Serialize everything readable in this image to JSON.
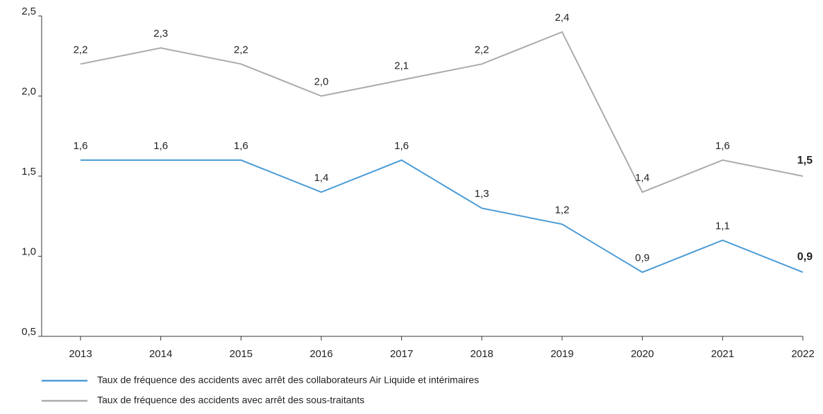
{
  "chart_data": {
    "type": "line",
    "categories": [
      "2013",
      "2014",
      "2015",
      "2016",
      "2017",
      "2018",
      "2019",
      "2020",
      "2021",
      "2022"
    ],
    "series": [
      {
        "name": "Taux de fréquence des accidents avec arrêt des collaborateurs Air Liquide et intérimaires",
        "color": "#4a9bd6",
        "values": [
          1.6,
          1.6,
          1.6,
          1.4,
          1.6,
          1.3,
          1.2,
          0.9,
          1.1,
          0.9
        ],
        "value_labels": [
          "1,6",
          "1,6",
          "1,6",
          "1,4",
          "1,6",
          "1,3",
          "1,2",
          "0,9",
          "1,1",
          "0,9"
        ]
      },
      {
        "name": "Taux de fréquence des accidents avec arrêt des sous-traitants",
        "color": "#aaaaaa",
        "values": [
          2.2,
          2.3,
          2.2,
          2.0,
          2.1,
          2.2,
          2.4,
          1.4,
          1.6,
          1.5
        ],
        "value_labels": [
          "2,2",
          "2,3",
          "2,2",
          "2,0",
          "2,1",
          "2,2",
          "2,4",
          "1,4",
          "1,6",
          "1,5"
        ]
      }
    ],
    "ylim": [
      0.5,
      2.5
    ],
    "yticks": [
      {
        "value": 0.5,
        "label": "0,5"
      },
      {
        "value": 1.0,
        "label": "1,0"
      },
      {
        "value": 1.5,
        "label": "1,5"
      },
      {
        "value": 2.0,
        "label": "2,0"
      },
      {
        "value": 2.5,
        "label": "2,5"
      }
    ],
    "grid": false,
    "legend": "bottom"
  }
}
